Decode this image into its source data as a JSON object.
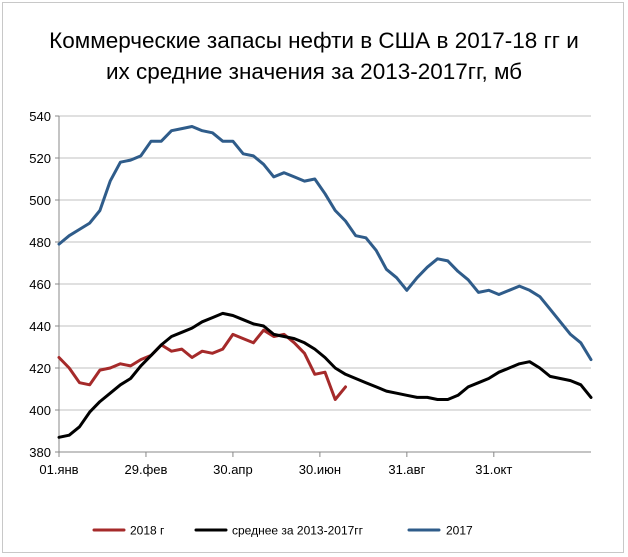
{
  "chart_data": {
    "type": "line",
    "title": "Коммерческие запасы нефти в США в 2017-18 гг и их средние значения за  2013-2017гг, мб",
    "title_lines": [
      "Коммерческие запасы нефти в США в 2017-18 гг и",
      "их средние значения за  2013-2017гг, мб"
    ],
    "xlabel": "",
    "ylabel": "",
    "ylim": [
      380,
      540
    ],
    "yticks": [
      380,
      400,
      420,
      440,
      460,
      480,
      500,
      520,
      540
    ],
    "xlim": [
      0,
      52
    ],
    "xtick_positions": [
      0,
      8.5,
      17,
      25.5,
      34,
      42.5
    ],
    "xtick_labels": [
      "01.янв",
      "29.фев",
      "30.апр",
      "30.июн",
      "31.авг",
      "31.окт"
    ],
    "grid": "horizontal",
    "legend_position": "bottom",
    "series": [
      {
        "name": "2018  г",
        "color": "#a52a2a",
        "x": [
          0,
          1,
          2,
          3,
          4,
          5,
          6,
          7,
          8,
          9,
          10,
          11,
          12,
          13,
          14,
          15,
          16,
          17,
          18,
          19,
          20,
          21,
          22,
          23,
          24,
          25,
          26,
          27,
          28
        ],
        "values": [
          425,
          420,
          413,
          412,
          419,
          420,
          422,
          421,
          424,
          426,
          431,
          428,
          429,
          425,
          428,
          427,
          429,
          436,
          434,
          432,
          438,
          435,
          436,
          432,
          427,
          417,
          418,
          405,
          411
        ]
      },
      {
        "name": "среднее за 2013-2017гг",
        "color": "#000000",
        "x": [
          0,
          1,
          2,
          3,
          4,
          5,
          6,
          7,
          8,
          9,
          10,
          11,
          12,
          13,
          14,
          15,
          16,
          17,
          18,
          19,
          20,
          21,
          22,
          23,
          24,
          25,
          26,
          27,
          28,
          29,
          30,
          31,
          32,
          33,
          34,
          35,
          36,
          37,
          38,
          39,
          40,
          41,
          42,
          43,
          44,
          45,
          46,
          47,
          48,
          49,
          50,
          51,
          52
        ],
        "values": [
          387,
          388,
          392,
          399,
          404,
          408,
          412,
          415,
          421,
          426,
          431,
          435,
          437,
          439,
          442,
          444,
          446,
          445,
          443,
          441,
          440,
          436,
          435,
          434,
          432,
          429,
          425,
          420,
          417,
          415,
          413,
          411,
          409,
          408,
          407,
          406,
          406,
          405,
          405,
          407,
          411,
          413,
          415,
          418,
          420,
          422,
          423,
          420,
          416,
          415,
          414,
          412,
          406
        ]
      },
      {
        "name": "2017",
        "color": "#2f5c8a",
        "x": [
          0,
          1,
          2,
          3,
          4,
          5,
          6,
          7,
          8,
          9,
          10,
          11,
          12,
          13,
          14,
          15,
          16,
          17,
          18,
          19,
          20,
          21,
          22,
          23,
          24,
          25,
          26,
          27,
          28,
          29,
          30,
          31,
          32,
          33,
          34,
          35,
          36,
          37,
          38,
          39,
          40,
          41,
          42,
          43,
          44,
          45,
          46,
          47,
          48,
          49,
          50,
          51,
          52
        ],
        "values": [
          479,
          483,
          486,
          489,
          495,
          509,
          518,
          519,
          521,
          528,
          528,
          533,
          534,
          535,
          533,
          532,
          528,
          528,
          522,
          521,
          517,
          511,
          513,
          511,
          509,
          510,
          503,
          495,
          490,
          483,
          482,
          476,
          467,
          463,
          457,
          463,
          468,
          472,
          471,
          466,
          462,
          456,
          457,
          455,
          457,
          459,
          457,
          454,
          448,
          442,
          436,
          432,
          424
        ]
      }
    ]
  }
}
